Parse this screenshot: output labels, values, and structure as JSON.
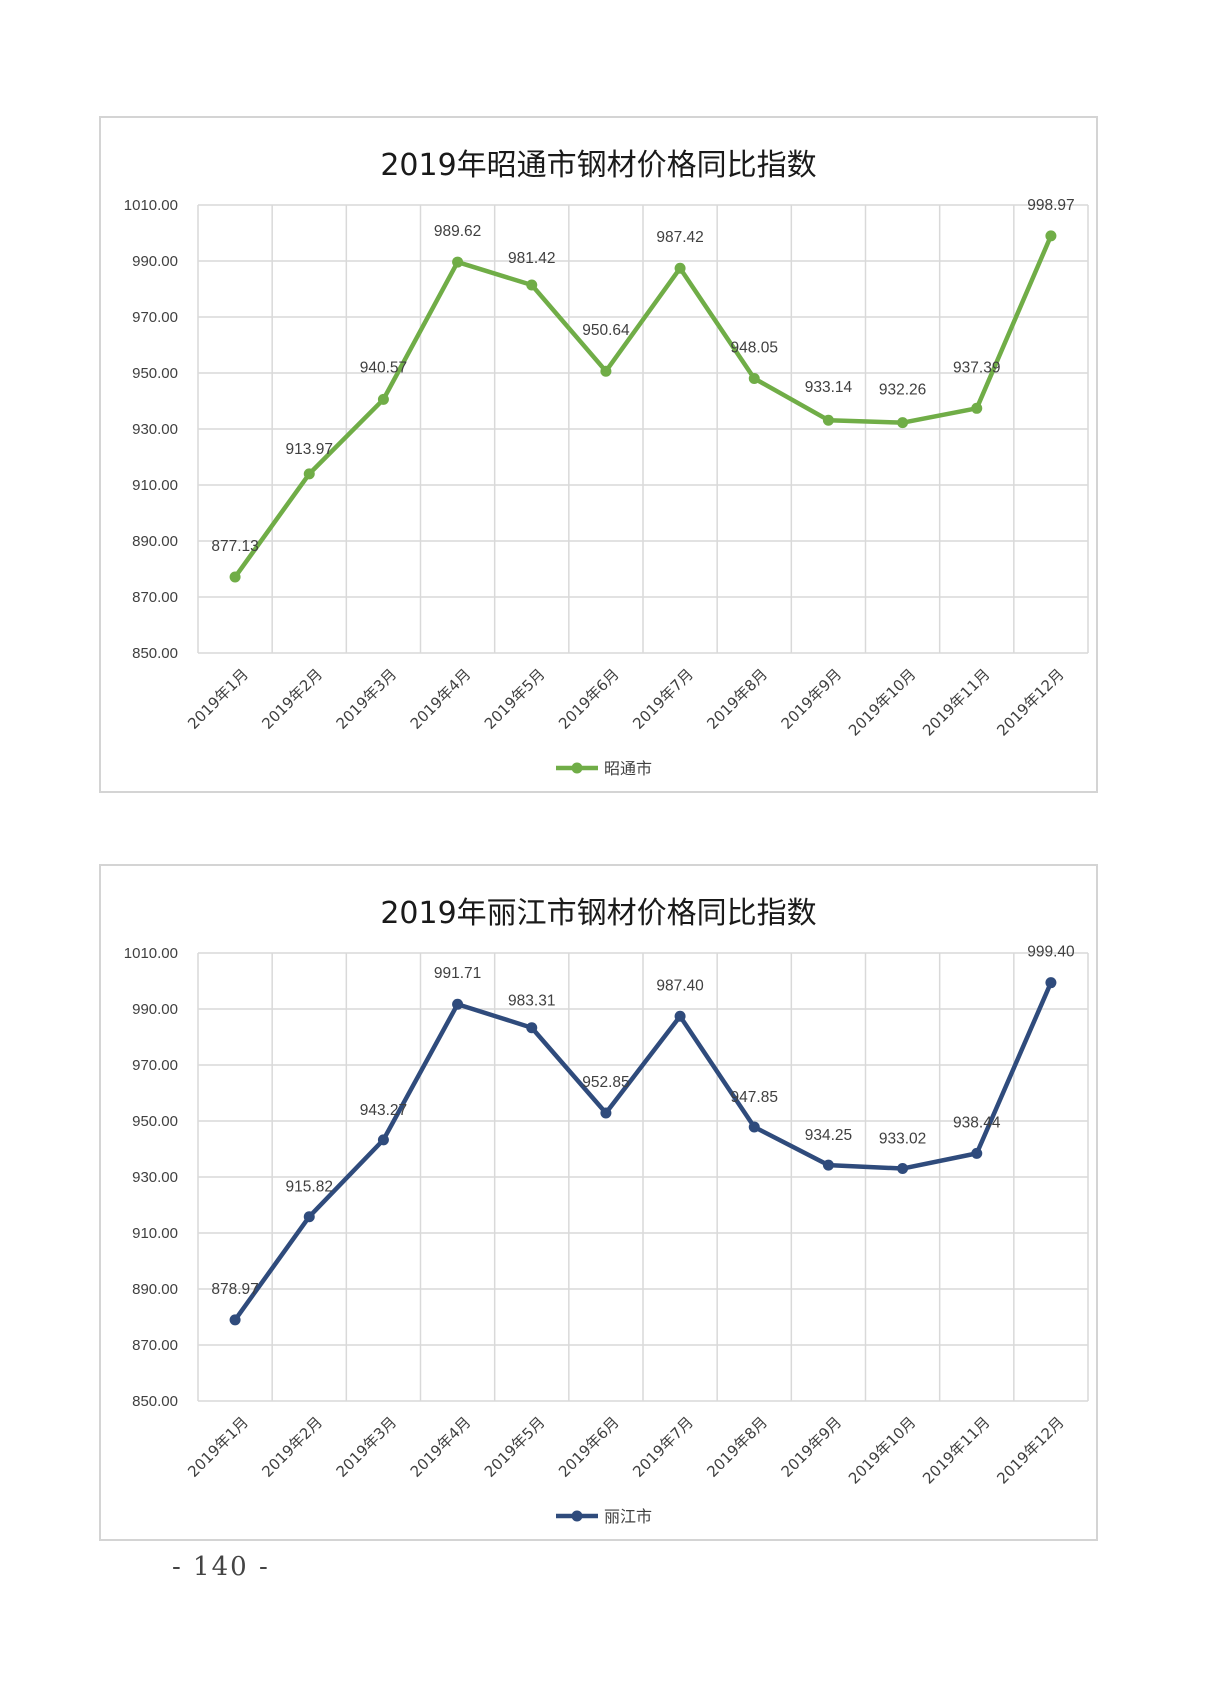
{
  "page": {
    "number": "- 140 -"
  },
  "chart_data": [
    {
      "type": "line",
      "title": "2019年昭通市钢材价格同比指数",
      "categories": [
        "2019年1月",
        "2019年2月",
        "2019年3月",
        "2019年4月",
        "2019年5月",
        "2019年6月",
        "2019年7月",
        "2019年8月",
        "2019年9月",
        "2019年10月",
        "2019年11月",
        "2019年12月"
      ],
      "series": [
        {
          "name": "昭通市",
          "color": "#70ad47",
          "values": [
            877.13,
            913.97,
            940.57,
            989.62,
            981.42,
            950.64,
            987.42,
            948.05,
            933.14,
            932.26,
            937.39,
            998.97
          ],
          "labels": [
            "877.13",
            "913.97",
            "940.57",
            "989.62",
            "981.42",
            "950.64",
            "987.42",
            "948.05",
            "933.14",
            "932.26",
            "937.39",
            "998.97"
          ]
        }
      ],
      "ylim": [
        850,
        1010
      ],
      "yticks": [
        "850.00",
        "870.00",
        "890.00",
        "910.00",
        "930.00",
        "950.00",
        "970.00",
        "990.00",
        "1010.00"
      ],
      "grid": true,
      "legend": "bottom"
    },
    {
      "type": "line",
      "title": "2019年丽江市钢材价格同比指数",
      "categories": [
        "2019年1月",
        "2019年2月",
        "2019年3月",
        "2019年4月",
        "2019年5月",
        "2019年6月",
        "2019年7月",
        "2019年8月",
        "2019年9月",
        "2019年10月",
        "2019年11月",
        "2019年12月"
      ],
      "series": [
        {
          "name": "丽江市",
          "color": "#2f4b7c",
          "values": [
            878.97,
            915.82,
            943.27,
            991.71,
            983.31,
            952.85,
            987.4,
            947.85,
            934.25,
            933.02,
            938.44,
            999.4
          ],
          "labels": [
            "878.97",
            "915.82",
            "943.27",
            "991.71",
            "983.31",
            "952.85",
            "987.40",
            "947.85",
            "934.25",
            "933.02",
            "938.44",
            "999.40"
          ]
        }
      ],
      "ylim": [
        850,
        1010
      ],
      "yticks": [
        "850.00",
        "870.00",
        "890.00",
        "910.00",
        "930.00",
        "950.00",
        "970.00",
        "990.00",
        "1010.00"
      ],
      "grid": true,
      "legend": "bottom"
    }
  ]
}
